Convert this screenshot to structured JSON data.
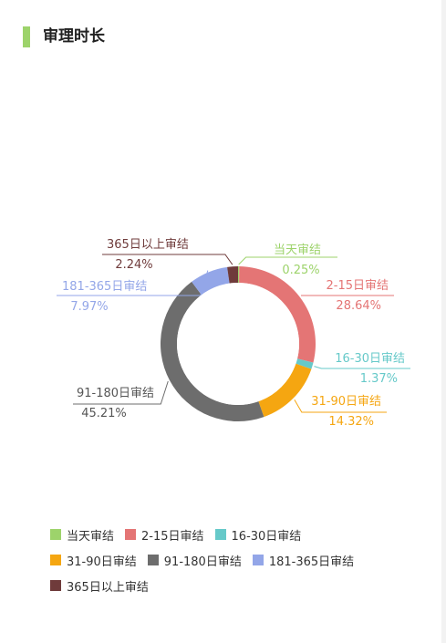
{
  "header": {
    "title": "审理时长",
    "accent": "#9dd36b"
  },
  "chart_data": {
    "type": "pie",
    "title": "审理时长",
    "series": [
      {
        "name": "当天审结",
        "value": 0.25,
        "label": "0.25%",
        "color": "#9dd36b"
      },
      {
        "name": "2-15日审结",
        "value": 28.64,
        "label": "28.64%",
        "color": "#e47575"
      },
      {
        "name": "16-30日审结",
        "value": 1.37,
        "label": "1.37%",
        "color": "#66c9c9"
      },
      {
        "name": "31-90日审结",
        "value": 14.32,
        "label": "14.32%",
        "color": "#f5a611"
      },
      {
        "name": "91-180日审结",
        "value": 45.21,
        "label": "45.21%",
        "color": "#6d6d6d"
      },
      {
        "name": "181-365日审结",
        "value": 7.97,
        "label": "7.97%",
        "color": "#93a6e8"
      },
      {
        "name": "365日以上审结",
        "value": 2.24,
        "label": "2.24%",
        "color": "#6f3b3b"
      }
    ],
    "legend_position": "bottom"
  }
}
